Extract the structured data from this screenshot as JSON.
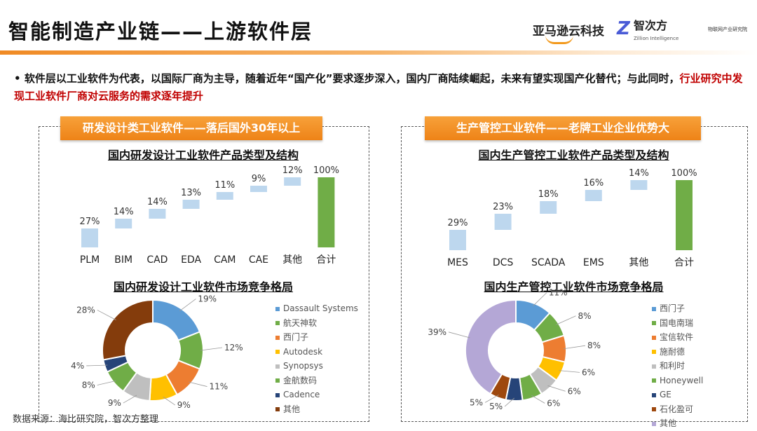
{
  "header": {
    "title": "智能制造产业链——上游软件层",
    "logos": [
      "亚马逊云科技",
      "智次方",
      "Zillion Intelligence",
      "物联网产业研究院"
    ]
  },
  "bullet": {
    "text": "软件层以工业软件为代表，以国际厂商为主导，随着近年“国产化”要求逐步深入，国内厂商陆续崛起，未来有望实现国产化替代；与此同时，",
    "highlight": "行业研究中发现工业软件厂商对云服务的需求逐年提升"
  },
  "left": {
    "banner": "研发设计类工业软件——落后国外30年以上"
  },
  "right": {
    "banner": "生产管控工业软件——老牌工业企业优势大"
  },
  "source": "数据来源：海比研究院，智次方整理",
  "chart_data": [
    {
      "type": "waterfall",
      "title": "国内研发设计工业软件产品类型及结构",
      "categories": [
        "PLM",
        "BIM",
        "CAD",
        "EDA",
        "CAM",
        "CAE",
        "其他",
        "合计"
      ],
      "values": [
        27,
        14,
        14,
        13,
        11,
        9,
        12,
        100
      ],
      "unit": "%",
      "colors": {
        "bar": "#bdd7ee",
        "total": "#70ad47"
      }
    },
    {
      "type": "waterfall",
      "title": "国内生产管控工业软件产品类型及结构",
      "categories": [
        "MES",
        "DCS",
        "SCADA",
        "EMS",
        "其他",
        "合计"
      ],
      "values": [
        29,
        23,
        18,
        16,
        14,
        100
      ],
      "unit": "%",
      "colors": {
        "bar": "#bdd7ee",
        "total": "#70ad47"
      }
    },
    {
      "type": "pie",
      "donut": true,
      "title": "国内研发设计工业软件市场竞争格局",
      "labels": [
        "Dassault Systems",
        "航天神软",
        "西门子",
        "Autodesk",
        "Synopsys",
        "金航数码",
        "Cadence",
        "其他"
      ],
      "values": [
        19,
        12,
        11,
        9,
        9,
        8,
        4,
        28
      ],
      "colors": [
        "#5b9bd5",
        "#70ad47",
        "#ed7d31",
        "#ffc000",
        "#bfbfbf",
        "#70ad47",
        "#264478",
        "#843c0c"
      ],
      "legend": "right"
    },
    {
      "type": "pie",
      "donut": true,
      "title": "国内生产管控工业软件市场竞争格局",
      "labels": [
        "西门子",
        "国电南瑞",
        "宝信软件",
        "施耐德",
        "和利时",
        "Honeywell",
        "GE",
        "石化盈可",
        "其他"
      ],
      "values": [
        11,
        8,
        8,
        6,
        6,
        6,
        5,
        5,
        39
      ],
      "colors": [
        "#5b9bd5",
        "#70ad47",
        "#ed7d31",
        "#ffc000",
        "#bfbfbf",
        "#70ad47",
        "#264478",
        "#9e480e",
        "#b4a7d6"
      ],
      "legend": "right"
    }
  ]
}
